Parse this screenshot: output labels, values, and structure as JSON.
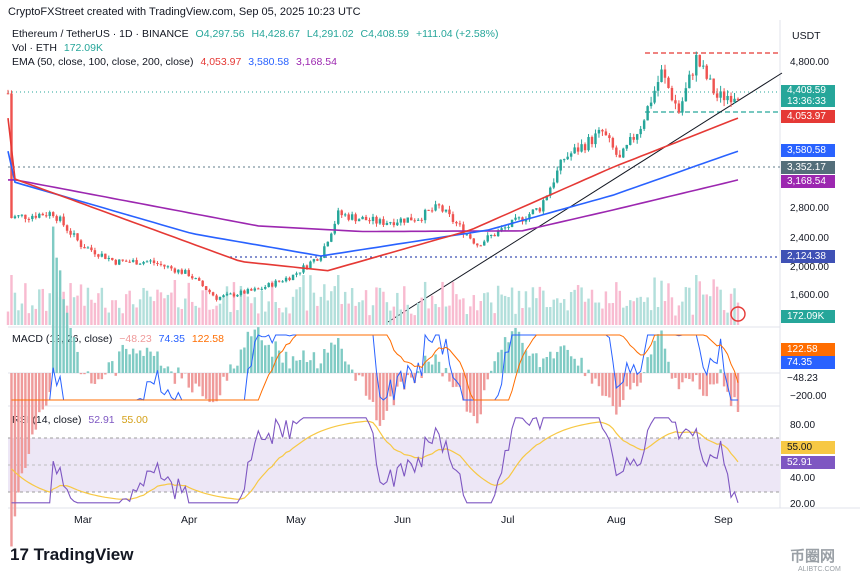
{
  "header": {
    "credit": "CryptoFXStreet created with TradingView.com, Sep 05, 2025 10:23 UTC"
  },
  "legend": {
    "symbol": "Ethereum / TetherUS · 1D · BINANCE",
    "o": "O4,297.56",
    "h": "H4,428.67",
    "l": "L4,291.02",
    "c": "C4,408.59",
    "chg": "+111.04 (+2.58%)",
    "vol_label": "Vol · ETH",
    "vol_value": "172.09K",
    "ema_label": "EMA (50, close, 100, close, 200, close)",
    "ema50": "4,053.97",
    "ema100": "3,580.58",
    "ema200": "3,168.54",
    "macd_label": "MACD (12, 26, close)",
    "macd_hist": "−48.23",
    "macd_line": "74.35",
    "macd_signal": "122.58",
    "rsi_label": "RSI (14, close)",
    "rsi_value": "52.91",
    "rsi_ma": "55.00"
  },
  "axis": {
    "currency": "USDT",
    "price_ticks": [
      "4,800.00",
      "2,800.00",
      "2,400.00",
      "2,000.00",
      "1,600.00"
    ],
    "macd_ticks": [
      "−200.00"
    ],
    "rsi_ticks": [
      "80.00",
      "40.00",
      "20.00"
    ],
    "months": [
      "Mar",
      "Apr",
      "May",
      "Jun",
      "Jul",
      "Aug",
      "Sep"
    ]
  },
  "tags": {
    "price": "4,408.59",
    "countdown": "13:36:33",
    "ema50": "4,053.97",
    "ema100": "3,580.58",
    "level1": "3,352.17",
    "ema200": "3,168.54",
    "level2": "2,124.38",
    "volume": "172.09K",
    "macd_signal": "122.58",
    "macd_line": "74.35",
    "macd_hist": "−48.23",
    "rsi_ma": "55.00",
    "rsi": "52.91"
  },
  "colors": {
    "up": "#26a69a",
    "down": "#ef5350",
    "ema50": "#e53935",
    "ema100": "#2962ff",
    "ema200": "#9c27b0",
    "rsi": "#7e57c2",
    "rsi_ma": "#f7c844",
    "macd": "#2962ff",
    "signal": "#ff6d00"
  },
  "branding": {
    "logo": "TradingView",
    "watermark": "币圈网",
    "watermark_sub": "ALIBTC.COM"
  },
  "chart_data": {
    "type": "candlestick",
    "title": "Ethereum / TetherUS · 1D · BINANCE",
    "x_range": [
      "2025-02-07",
      "2025-09-05"
    ],
    "y_range": [
      1400,
      5100
    ],
    "close_points": [
      [
        "2025-02-08",
        2630
      ],
      [
        "2025-02-20",
        2700
      ],
      [
        "2025-02-28",
        2240
      ],
      [
        "2025-03-10",
        2000
      ],
      [
        "2025-03-20",
        2000
      ],
      [
        "2025-03-31",
        1820
      ],
      [
        "2025-04-08",
        1480
      ],
      [
        "2025-04-20",
        1600
      ],
      [
        "2025-04-30",
        1800
      ],
      [
        "2025-05-08",
        2100
      ],
      [
        "2025-05-13",
        2680
      ],
      [
        "2025-05-25",
        2560
      ],
      [
        "2025-06-05",
        2630
      ],
      [
        "2025-06-11",
        2780
      ],
      [
        "2025-06-22",
        2250
      ],
      [
        "2025-06-30",
        2480
      ],
      [
        "2025-07-10",
        2770
      ],
      [
        "2025-07-17",
        3480
      ],
      [
        "2025-07-28",
        3850
      ],
      [
        "2025-08-02",
        3450
      ],
      [
        "2025-08-08",
        3950
      ],
      [
        "2025-08-14",
        4700
      ],
      [
        "2025-08-19",
        4150
      ],
      [
        "2025-08-24",
        4900
      ],
      [
        "2025-08-30",
        4350
      ],
      [
        "2025-09-05",
        4408.59
      ]
    ],
    "ema50_points": [
      [
        "2025-02-08",
        3200
      ],
      [
        "2025-04-15",
        2000
      ],
      [
        "2025-05-10",
        1870
      ],
      [
        "2025-06-20",
        2450
      ],
      [
        "2025-07-31",
        3350
      ],
      [
        "2025-09-05",
        4053.97
      ]
    ],
    "ema100_points": [
      [
        "2025-02-08",
        3150
      ],
      [
        "2025-04-01",
        2400
      ],
      [
        "2025-05-08",
        2080
      ],
      [
        "2025-06-25",
        2450
      ],
      [
        "2025-07-31",
        2950
      ],
      [
        "2025-09-05",
        3580.58
      ]
    ],
    "ema200_points": [
      [
        "2025-02-08",
        3180
      ],
      [
        "2025-04-20",
        2510
      ],
      [
        "2025-05-20",
        2430
      ],
      [
        "2025-07-05",
        2440
      ],
      [
        "2025-08-01",
        2750
      ],
      [
        "2025-09-05",
        3168.54
      ]
    ],
    "horizontal_levels": [
      4950,
      4360,
      3352.17,
      2124.38
    ],
    "macd": {
      "line": 74.35,
      "signal": 122.58,
      "histogram": -48.23
    },
    "rsi": {
      "value": 52.91,
      "ma": 55.0,
      "bands": [
        70,
        30
      ]
    },
    "xlabel": "",
    "ylabel": "USDT"
  }
}
